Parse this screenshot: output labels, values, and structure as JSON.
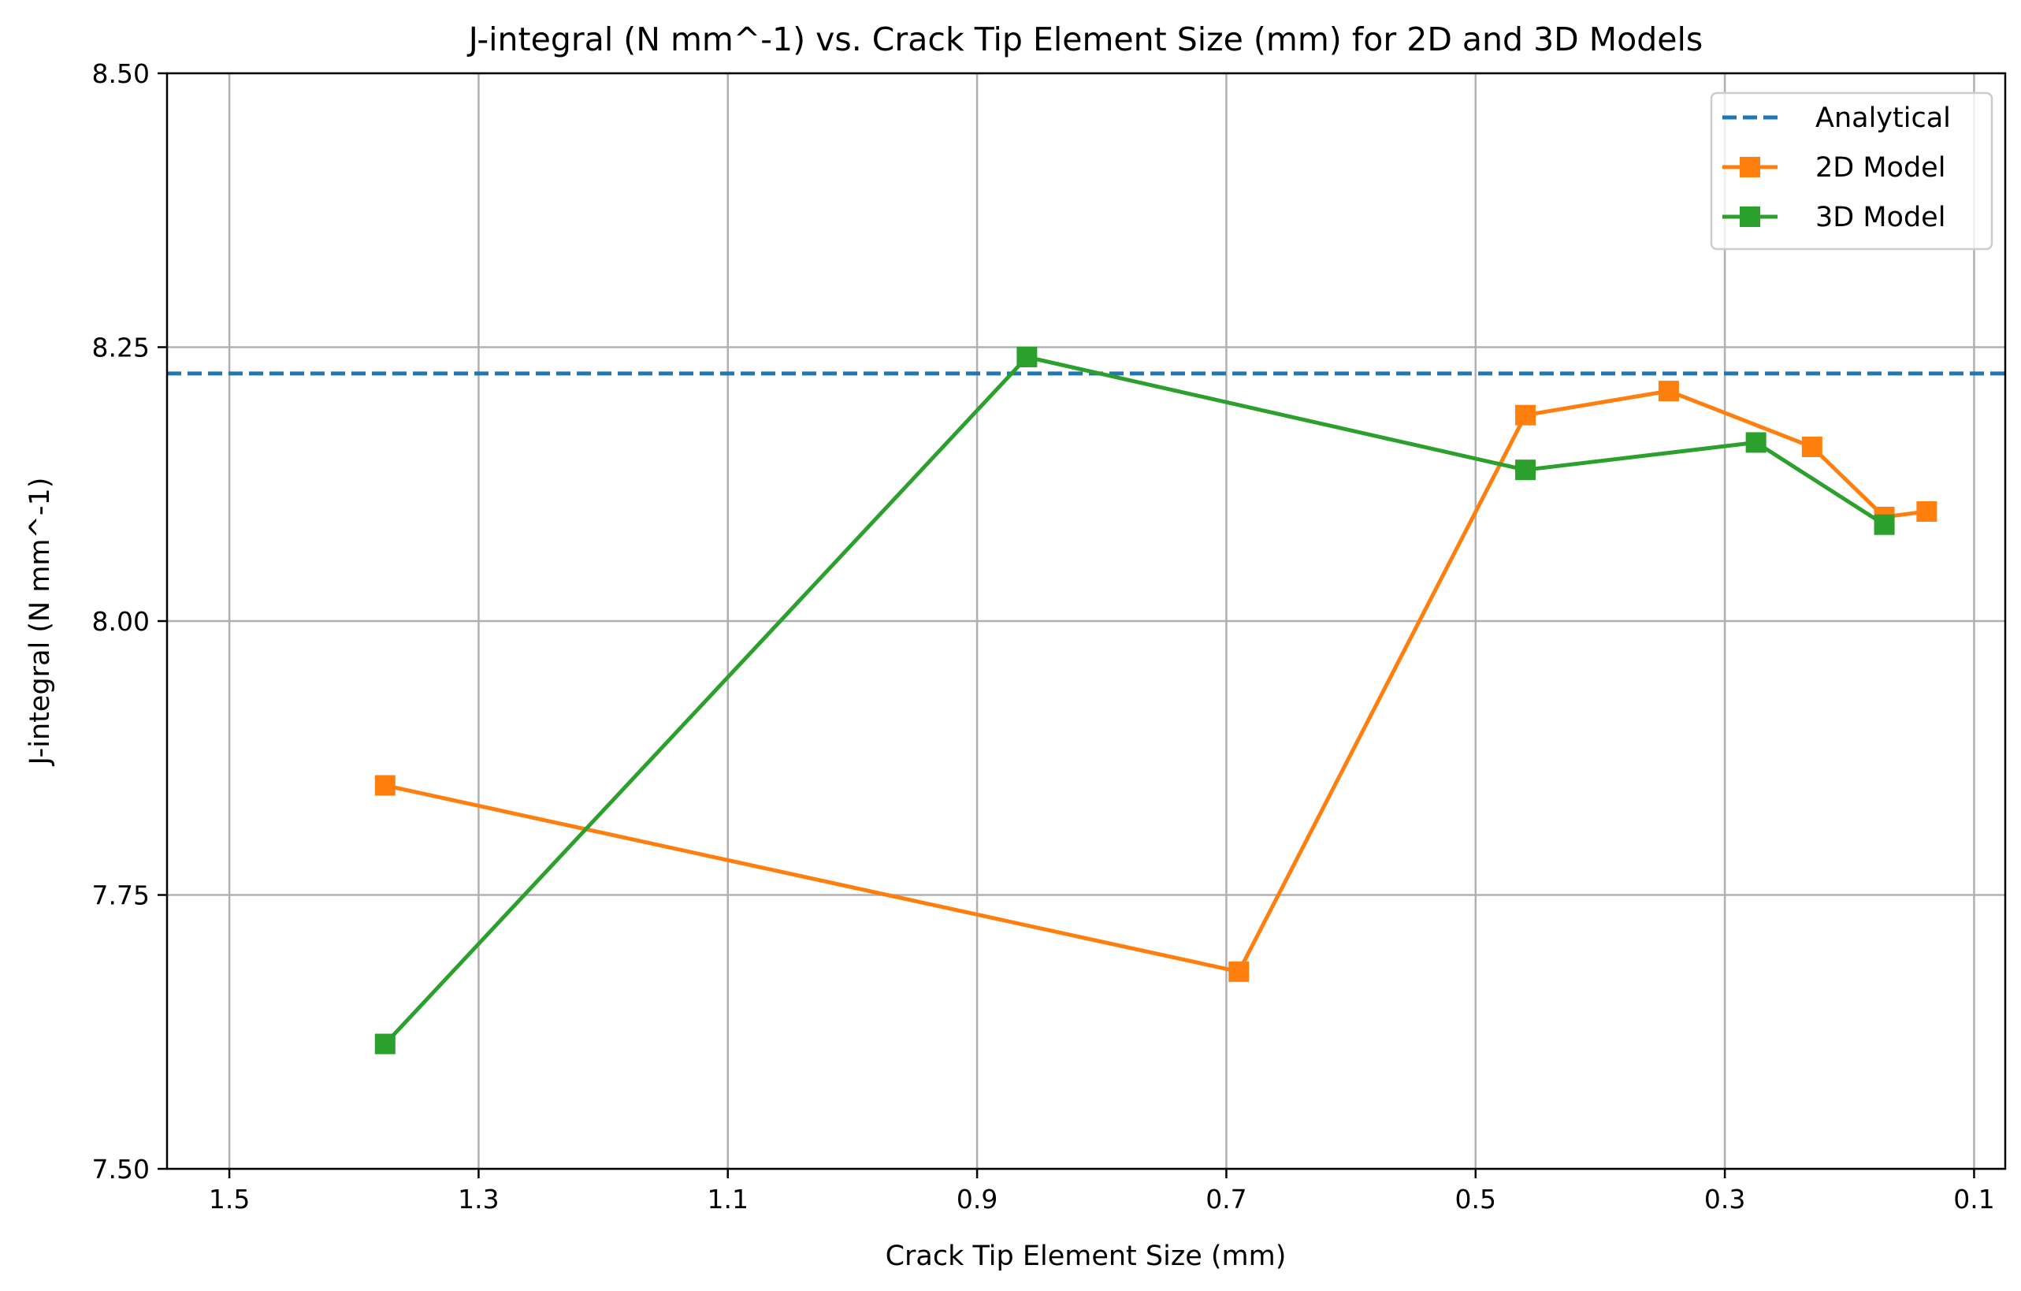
{
  "chart_data": {
    "type": "line",
    "title": "J-integral (N mm^-1) vs. Crack Tip Element Size (mm) for 2D and 3D Models",
    "xlabel": "Crack Tip Element Size (mm)",
    "ylabel": "J-integral (N mm^-1)",
    "xlim": [
      1.55,
      0.075
    ],
    "ylim": [
      7.5,
      8.5
    ],
    "x_inverted": true,
    "xticks": [
      1.5,
      1.3,
      1.1,
      0.9,
      0.7,
      0.5,
      0.3,
      0.1
    ],
    "xtick_labels": [
      "1.5",
      "1.3",
      "1.1",
      "0.9",
      "0.7",
      "0.5",
      "0.3",
      "0.1"
    ],
    "yticks": [
      7.5,
      7.75,
      8.0,
      8.25,
      8.5
    ],
    "ytick_labels": [
      "7.50",
      "7.75",
      "8.00",
      "8.25",
      "8.50"
    ],
    "grid": true,
    "legend_position": "top-right",
    "reference_line": {
      "name": "Analytical",
      "y": 8.226,
      "color": "#1f77b4",
      "style": "dashed"
    },
    "series": [
      {
        "name": "2D Model",
        "color": "#ff7f0e",
        "marker": "square",
        "x": [
          1.375,
          0.69,
          0.46,
          0.345,
          0.23,
          0.172,
          0.138
        ],
        "y": [
          7.85,
          7.68,
          8.188,
          8.21,
          8.159,
          8.095,
          8.1
        ]
      },
      {
        "name": "3D Model",
        "color": "#2ca02c",
        "marker": "square",
        "x": [
          1.375,
          0.86,
          0.46,
          0.275,
          0.172
        ],
        "y": [
          7.614,
          8.241,
          8.138,
          8.163,
          8.088
        ]
      }
    ]
  }
}
